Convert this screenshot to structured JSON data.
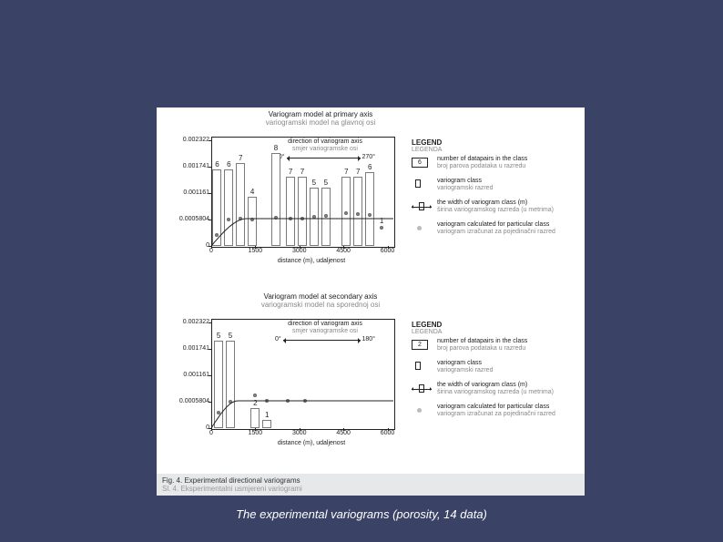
{
  "colors": {
    "page_bg": "#3a4266",
    "figure_bg": "#ffffff",
    "axis": "#222222",
    "bar_fill": "#ffffff",
    "bar_stroke": "#7a7a7a",
    "point": "#888888",
    "curve": "#222222",
    "footer_bg": "#e6e8ea",
    "footer_sub": "#999999",
    "caption": "#ffffff"
  },
  "caption": "The experimental variograms (porosity, 14 data)",
  "footer": {
    "main": "Fig. 4. Experimental directional variograms",
    "sub": "Sl. 4. Eksperimentalni usmjereni variogrami"
  },
  "panels": [
    {
      "id": "primary",
      "title_main": "Variogram model at primary axis",
      "title_sub": "variogramski model na glavnoj osi",
      "arrow_title": "direction of variogram axis",
      "arrow_sub": "smjer variogramske osi",
      "arrow_left": "90°",
      "arrow_right": "270°",
      "x_label": "distance (m), udaljenost",
      "y_ticks": [
        {
          "v": 0,
          "l": "0"
        },
        {
          "v": 0.0005804,
          "l": "0.0005804"
        },
        {
          "v": 0.001161,
          "l": "0.001161"
        },
        {
          "v": 0.001741,
          "l": "0.001741"
        },
        {
          "v": 0.002322,
          "l": "0.002322"
        }
      ],
      "y_max": 0.0024,
      "x_ticks": [
        0,
        1500,
        3000,
        4500,
        6000
      ],
      "x_max": 6200,
      "bars": [
        {
          "x": 200,
          "h": 0.00168,
          "n": "6"
        },
        {
          "x": 600,
          "h": 0.00168,
          "n": "6"
        },
        {
          "x": 1000,
          "h": 0.00182,
          "n": "7"
        },
        {
          "x": 1400,
          "h": 0.00108,
          "n": "4"
        },
        {
          "x": 2200,
          "h": 0.00205,
          "n": "8"
        },
        {
          "x": 2700,
          "h": 0.00152,
          "n": "7"
        },
        {
          "x": 3100,
          "h": 0.00152,
          "n": "7"
        },
        {
          "x": 3500,
          "h": 0.00128,
          "n": "5"
        },
        {
          "x": 3900,
          "h": 0.00128,
          "n": "5"
        },
        {
          "x": 4600,
          "h": 0.00152,
          "n": "7"
        },
        {
          "x": 5000,
          "h": 0.00152,
          "n": "7"
        },
        {
          "x": 5400,
          "h": 0.00162,
          "n": "6"
        }
      ],
      "points": [
        {
          "x": 200,
          "y": 0.00024
        },
        {
          "x": 600,
          "y": 0.00058
        },
        {
          "x": 1000,
          "y": 0.00061
        },
        {
          "x": 1400,
          "y": 0.00059
        },
        {
          "x": 2200,
          "y": 0.00062
        },
        {
          "x": 2700,
          "y": 0.0006
        },
        {
          "x": 3100,
          "y": 0.0006
        },
        {
          "x": 3500,
          "y": 0.00065
        },
        {
          "x": 3900,
          "y": 0.00066
        },
        {
          "x": 4600,
          "y": 0.00072
        },
        {
          "x": 5000,
          "y": 0.0007
        },
        {
          "x": 5400,
          "y": 0.00068
        },
        {
          "x": 5800,
          "y": 0.0004,
          "n": "1"
        }
      ],
      "curve_sill": 0.0006,
      "curve_range": 1200,
      "legend_title": "LEGEND",
      "legend_title_sub": "LEGENDA",
      "legend": [
        {
          "icon": "num",
          "icon_val": "6",
          "main": "number of datapairs in the class",
          "sub": "broj parova podataka u razredu"
        },
        {
          "icon": "bar",
          "main": "variogram class",
          "sub": "variogramski razred"
        },
        {
          "icon": "width",
          "main": "the width of variogram class (m)",
          "sub": "širina variogramskog razreda (u metrima)"
        },
        {
          "icon": "point",
          "main": "variogram calculated for particular class",
          "sub": "variogram izračunat za pojedinačni razred"
        }
      ]
    },
    {
      "id": "secondary",
      "title_main": "Variogram model at secondary axis",
      "title_sub": "variogramski model na sporednoj osi",
      "arrow_title": "direction of variogram axis",
      "arrow_sub": "smjer variogramske osi",
      "arrow_left": "0°",
      "arrow_right": "180°",
      "x_label": "distance (m), udaljenost",
      "y_ticks": [
        {
          "v": 0,
          "l": "0"
        },
        {
          "v": 0.0005804,
          "l": "0.0005804"
        },
        {
          "v": 0.001161,
          "l": "0.001161"
        },
        {
          "v": 0.001741,
          "l": "0.001741"
        },
        {
          "v": 0.002322,
          "l": "0.002322"
        }
      ],
      "y_max": 0.0024,
      "x_ticks": [
        0,
        1500,
        3000,
        4500,
        6000
      ],
      "x_max": 6200,
      "bars": [
        {
          "x": 250,
          "h": 0.00192,
          "n": "5"
        },
        {
          "x": 650,
          "h": 0.00192,
          "n": "5"
        },
        {
          "x": 1500,
          "h": 0.00045,
          "n": "2"
        },
        {
          "x": 1900,
          "h": 0.00018,
          "n": "1"
        }
      ],
      "points": [
        {
          "x": 250,
          "y": 0.00035
        },
        {
          "x": 650,
          "y": 0.00058
        },
        {
          "x": 1500,
          "y": 0.00072
        },
        {
          "x": 1900,
          "y": 0.0006
        },
        {
          "x": 2600,
          "y": 0.0006
        },
        {
          "x": 3200,
          "y": 0.0006
        }
      ],
      "curve_sill": 0.0006,
      "curve_range": 900,
      "legend_title": "LEGEND",
      "legend_title_sub": "LEGENDA",
      "legend": [
        {
          "icon": "num",
          "icon_val": "2",
          "main": "number of datapairs in the class",
          "sub": "broj parova podataka u razredu"
        },
        {
          "icon": "bar",
          "main": "variogram class",
          "sub": "variogramski razred"
        },
        {
          "icon": "width",
          "main": "the width of variogram class (m)",
          "sub": "širina variogramskog razreda (u metrima)"
        },
        {
          "icon": "point",
          "main": "variogram calculated for particular class",
          "sub": "variogram izračunat za pojedinačni razred"
        }
      ]
    }
  ]
}
